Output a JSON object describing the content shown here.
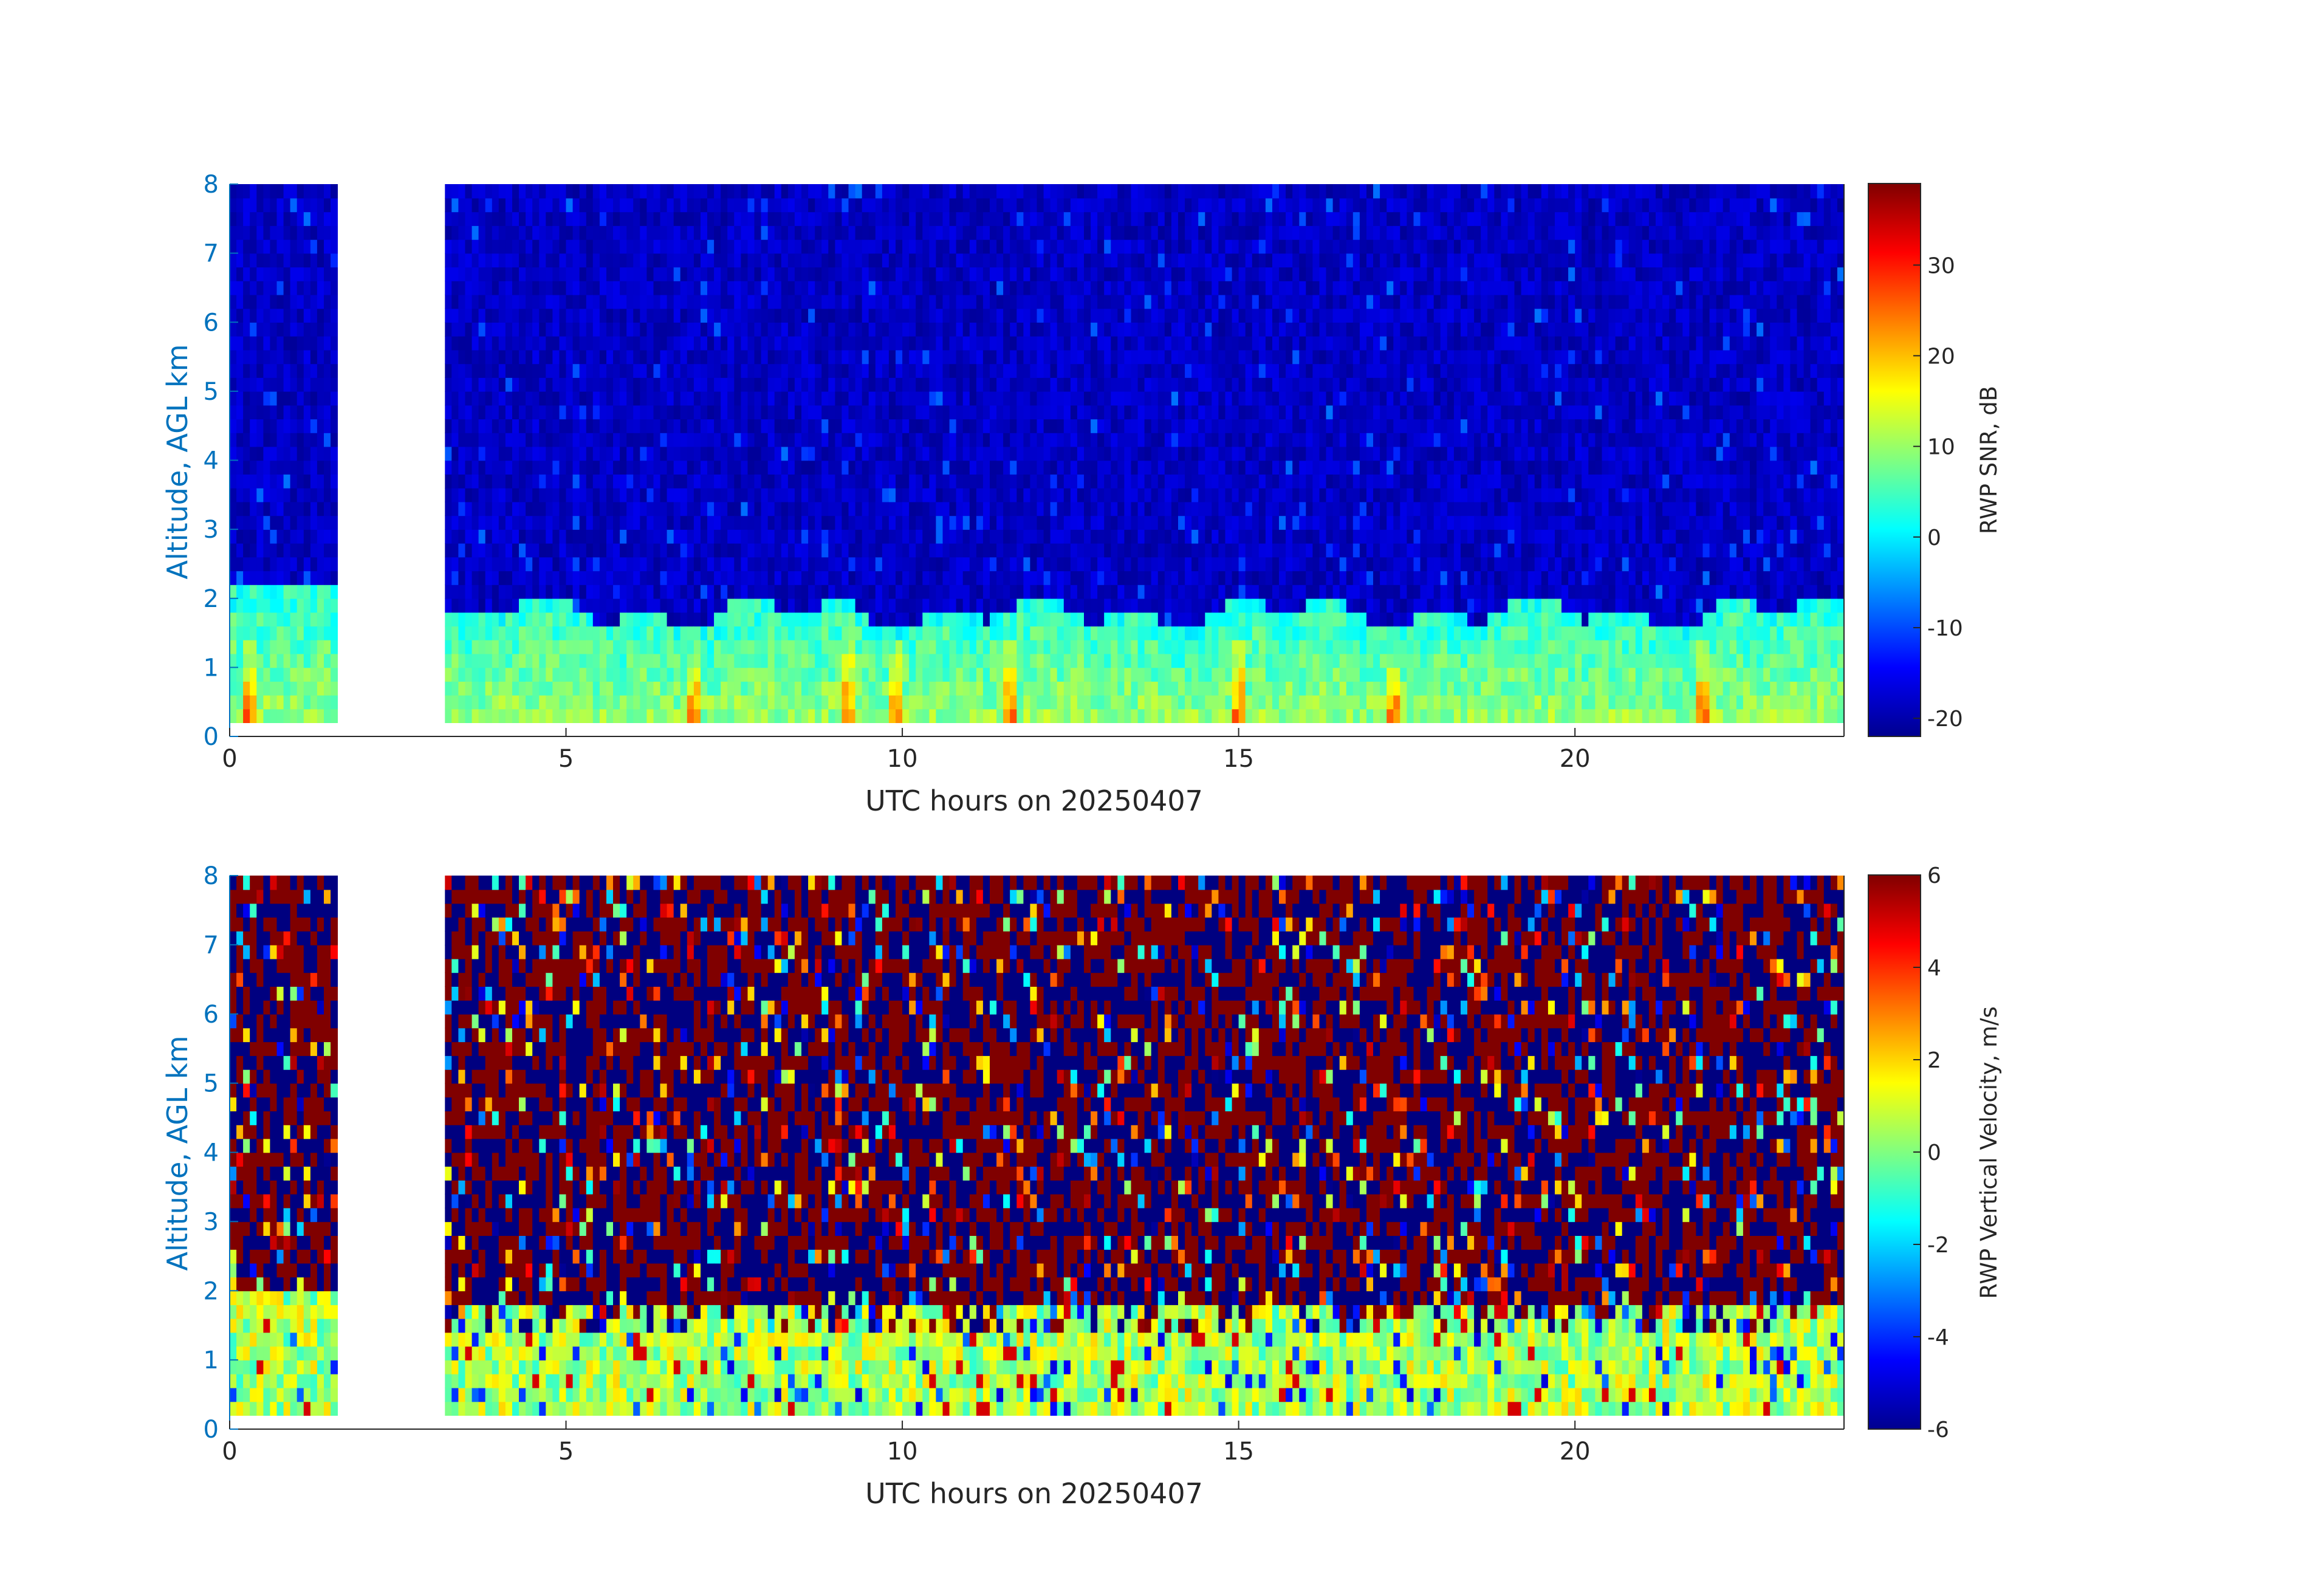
{
  "chart_data": [
    {
      "type": "heatmap",
      "xlabel": "UTC hours on 20250407",
      "ylabel": "Altitude, AGL km",
      "xlim": [
        0,
        24
      ],
      "ylim": [
        0,
        8
      ],
      "xticks": [
        "0",
        "5",
        "10",
        "15",
        "20"
      ],
      "yticks": [
        "0",
        "1",
        "2",
        "3",
        "4",
        "5",
        "6",
        "7",
        "8"
      ],
      "colorbar": {
        "label": "RWP SNR, dB",
        "range": [
          -22,
          39
        ],
        "ticks": [
          "-20",
          "-10",
          "0",
          "10",
          "20",
          "30"
        ],
        "colormap": "jet"
      },
      "data_gap_hours": [
        1.6,
        3.2
      ],
      "valid_altitude_km": [
        0.2,
        8
      ],
      "summary": {
        "boundary_layer_top_km": 1.8,
        "above_bl_typical_db": -18,
        "within_bl_typical_db": 3,
        "peak_db": 38,
        "peak_times_hours": [
          0.3,
          6.9,
          9.2,
          9.9,
          11.6,
          15.0,
          17.3,
          21.9
        ]
      }
    },
    {
      "type": "heatmap",
      "xlabel": "UTC hours on 20250407",
      "ylabel": "Altitude, AGL km",
      "xlim": [
        0,
        24
      ],
      "ylim": [
        0,
        8
      ],
      "xticks": [
        "0",
        "5",
        "10",
        "15",
        "20"
      ],
      "yticks": [
        "0",
        "1",
        "2",
        "3",
        "4",
        "5",
        "6",
        "7",
        "8"
      ],
      "colorbar": {
        "label": "RWP Vertical Velocity, m/s",
        "range": [
          -6,
          6
        ],
        "ticks": [
          "-6",
          "-4",
          "-2",
          "0",
          "2",
          "4",
          "6"
        ],
        "colormap": "jet"
      },
      "data_gap_hours": [
        1.6,
        3.2
      ],
      "valid_altitude_km": [
        0.2,
        8
      ],
      "summary": {
        "boundary_layer_top_km": 1.8,
        "above_bl": "noisy, values alternating between -6 and 6",
        "within_bl_typical_ms": 0.5
      }
    }
  ]
}
